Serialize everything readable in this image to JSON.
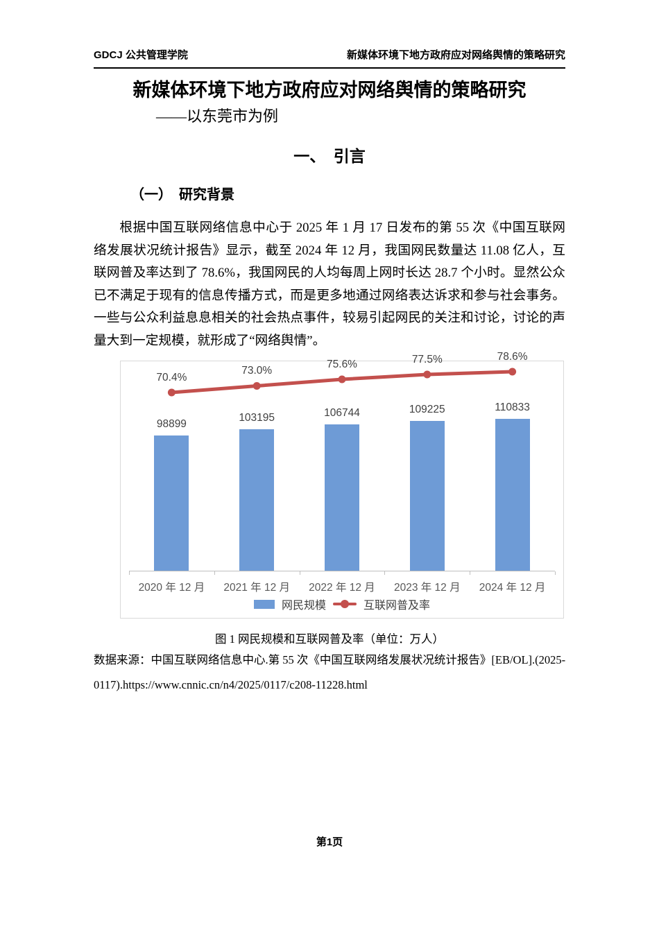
{
  "page": {
    "header": {
      "left": "GDCJ 公共管理学院",
      "right": "新媒体环境下地方政府应对网络舆情的策略研究"
    },
    "title": "新媒体环境下地方政府应对网络舆情的策略研究",
    "subtitle": "——以东莞市为例",
    "section_heading": "一、　引言",
    "subsection_heading": "（一）　研究背景",
    "paragraph": "根据中国互联网络信息中心于 2025 年 1 月 17 日发布的第 55 次《中国互联网络发展状况统计报告》显示，截至 2024 年 12 月，我国网民数量达 11.08 亿人，互联网普及率达到了 78.6%，我国网民的人均每周上网时长达 28.7 个小时。显然公众已不满足于现有的信息传播方式，而是更多地通过网络表达诉求和参与社会事务。一些与公众利益息息相关的社会热点事件，较易引起网民的关注和讨论，讨论的声量大到一定规模，就形成了“网络舆情”。",
    "figure_caption": "图 1 网民规模和互联网普及率（单位：万人）",
    "data_source_line1": "数据来源：中国互联网络信息中心.第 55 次《中国互联网络发展状况统计报告》[EB/OL].(2025-",
    "data_source_line2": "0117).https://www.cnnic.cn/n4/2025/0117/c208-11228.html",
    "footer": "第1页"
  },
  "chart_data": {
    "type": "bar+line",
    "title": "网民规模和互联网普及率",
    "unit": "万人",
    "categories": [
      "2020 年 12 月",
      "2021 年 12 月",
      "2022 年 12 月",
      "2023 年 12 月",
      "2024 年 12 月"
    ],
    "series": [
      {
        "name": "网民规模",
        "type": "bar",
        "values": [
          98899,
          103195,
          106744,
          109225,
          110833
        ],
        "color": "#6e9bd6"
      },
      {
        "name": "互联网普及率",
        "type": "line",
        "values": [
          70.4,
          73.0,
          75.6,
          77.5,
          78.6
        ],
        "labels": [
          "70.4%",
          "73.0%",
          "75.6%",
          "77.5%",
          "78.6%"
        ],
        "color": "#c3504d"
      }
    ],
    "legend_position": "bottom",
    "grid": false,
    "axes_visible": "x-only"
  }
}
